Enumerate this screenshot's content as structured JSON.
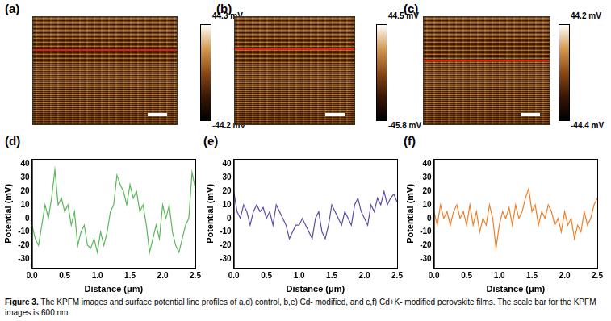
{
  "figure_images": [
    {
      "label": "(a)",
      "colorbar": {
        "range": [
          -44.2,
          44.3
        ],
        "ticks": [
          {
            "value": 44.3,
            "label": "44.3 mV"
          },
          {
            "value": -44.2,
            "label": "-44.2 mV"
          }
        ]
      }
    },
    {
      "label": "(b)",
      "colorbar": {
        "range": [
          -45.8,
          44.5
        ],
        "ticks": [
          {
            "value": 44.5,
            "label": "44.5 mV"
          },
          {
            "value": -45.8,
            "label": "-45.8 mV"
          }
        ]
      }
    },
    {
      "label": "(c)",
      "colorbar": {
        "range": [
          -44.4,
          44.2
        ],
        "ticks": [
          {
            "value": 44.2,
            "label": "44.2 mV"
          },
          {
            "value": -44.4,
            "label": "-44.4 mV"
          }
        ]
      }
    }
  ],
  "chart_data": [
    {
      "label": "(d)",
      "type": "line",
      "x_label": "Distance (μm)",
      "y_label": "Potential (mV)",
      "xlim": [
        0,
        2.5
      ],
      "xticks": [
        {
          "value": 0,
          "label": "0.0"
        },
        0.5,
        {
          "value": 1,
          "label": "1.0"
        },
        1.5,
        {
          "value": 2,
          "label": "2.0"
        },
        2.5
      ],
      "ylim": [
        -37,
        44
      ],
      "yticks": [
        -30,
        -20,
        -10,
        0,
        10,
        20,
        30,
        40
      ],
      "grid": false,
      "color": "#5cb85c",
      "x": [
        0,
        0.05,
        0.1,
        0.15,
        0.2,
        0.25,
        0.3,
        0.35,
        0.4,
        0.45,
        0.5,
        0.55,
        0.6,
        0.65,
        0.7,
        0.75,
        0.8,
        0.85,
        0.9,
        0.95,
        1,
        1.05,
        1.1,
        1.15,
        1.2,
        1.25,
        1.3,
        1.35,
        1.4,
        1.45,
        1.5,
        1.55,
        1.6,
        1.65,
        1.7,
        1.75,
        1.8,
        1.85,
        1.9,
        1.95,
        2,
        2.05,
        2.1,
        2.15,
        2.2,
        2.25,
        2.3,
        2.35,
        2.4,
        2.45,
        2.5
      ],
      "values": [
        -5,
        -15,
        -20,
        -5,
        10,
        0,
        15,
        36,
        10,
        15,
        5,
        10,
        -5,
        5,
        -20,
        -10,
        -5,
        -20,
        -22,
        -15,
        -25,
        -10,
        -20,
        -10,
        5,
        10,
        32,
        25,
        20,
        10,
        25,
        15,
        20,
        5,
        10,
        -5,
        -25,
        -15,
        -5,
        -15,
        10,
        0,
        10,
        -10,
        -20,
        -25,
        -15,
        -5,
        0,
        34,
        22
      ]
    },
    {
      "label": "(e)",
      "type": "line",
      "x_label": "Distance (μm)",
      "y_label": "Potential (mV)",
      "xlim": [
        0,
        2.5
      ],
      "xticks": [
        {
          "value": 0,
          "label": "0.0"
        },
        0.5,
        {
          "value": 1,
          "label": "1.0"
        },
        1.5,
        {
          "value": 2,
          "label": "2.0"
        },
        2.5
      ],
      "ylim": [
        -37,
        44
      ],
      "yticks": [
        -30,
        -20,
        -10,
        0,
        10,
        20,
        30,
        40
      ],
      "grid": false,
      "color": "#5b4fa3",
      "x": [
        0,
        0.05,
        0.1,
        0.15,
        0.2,
        0.25,
        0.3,
        0.35,
        0.4,
        0.45,
        0.5,
        0.55,
        0.6,
        0.65,
        0.7,
        0.75,
        0.8,
        0.85,
        0.9,
        0.95,
        1,
        1.05,
        1.1,
        1.15,
        1.2,
        1.25,
        1.3,
        1.35,
        1.4,
        1.45,
        1.5,
        1.55,
        1.6,
        1.65,
        1.7,
        1.75,
        1.8,
        1.85,
        1.9,
        1.95,
        2,
        2.05,
        2.1,
        2.15,
        2.2,
        2.25,
        2.3,
        2.35,
        2.4,
        2.45,
        2.5
      ],
      "values": [
        20,
        5,
        0,
        10,
        5,
        -5,
        5,
        10,
        5,
        8,
        0,
        5,
        -5,
        10,
        5,
        0,
        -5,
        -15,
        -10,
        -5,
        -5,
        0,
        -5,
        -10,
        -15,
        0,
        5,
        -10,
        -15,
        -5,
        10,
        5,
        0,
        -5,
        5,
        0,
        -5,
        10,
        15,
        5,
        0,
        -5,
        10,
        5,
        15,
        10,
        20,
        10,
        15,
        18,
        12
      ]
    },
    {
      "label": "(f)",
      "type": "line",
      "x_label": "Distance (μm)",
      "y_label": "Potential (mV)",
      "xlim": [
        0,
        2.5
      ],
      "xticks": [
        {
          "value": 0,
          "label": "0.0"
        },
        0.5,
        {
          "value": 1,
          "label": "1.0"
        },
        1.5,
        {
          "value": 2,
          "label": "2.0"
        },
        2.5
      ],
      "ylim": [
        -37,
        44
      ],
      "yticks": [
        -30,
        -20,
        -10,
        0,
        10,
        20,
        30,
        40
      ],
      "grid": false,
      "color": "#f07f2a",
      "x": [
        0,
        0.05,
        0.1,
        0.15,
        0.2,
        0.25,
        0.3,
        0.35,
        0.4,
        0.45,
        0.5,
        0.55,
        0.6,
        0.65,
        0.7,
        0.75,
        0.8,
        0.85,
        0.9,
        0.95,
        1,
        1.05,
        1.1,
        1.15,
        1.2,
        1.25,
        1.3,
        1.35,
        1.4,
        1.45,
        1.5,
        1.55,
        1.6,
        1.65,
        1.7,
        1.75,
        1.8,
        1.85,
        1.9,
        1.95,
        2,
        2.05,
        2.1,
        2.15,
        2.2,
        2.25,
        2.3,
        2.35,
        2.4,
        2.45,
        2.5
      ],
      "values": [
        5,
        -5,
        10,
        0,
        5,
        -5,
        5,
        10,
        0,
        5,
        -5,
        10,
        -5,
        5,
        -10,
        0,
        -5,
        10,
        0,
        -22,
        -5,
        5,
        0,
        8,
        -5,
        10,
        0,
        5,
        15,
        22,
        5,
        10,
        -5,
        5,
        0,
        10,
        5,
        -5,
        0,
        -10,
        5,
        -5,
        0,
        -15,
        -5,
        -10,
        5,
        -5,
        0,
        10,
        15
      ]
    }
  ],
  "caption": {
    "label": "Figure 3.",
    "text": "The KPFM images and surface potential line profiles of a,d) control, b,e) Cd- modified, and c,f) Cd+K- modified perovskite films. The scale bar for the KPFM images is 600 nm."
  }
}
